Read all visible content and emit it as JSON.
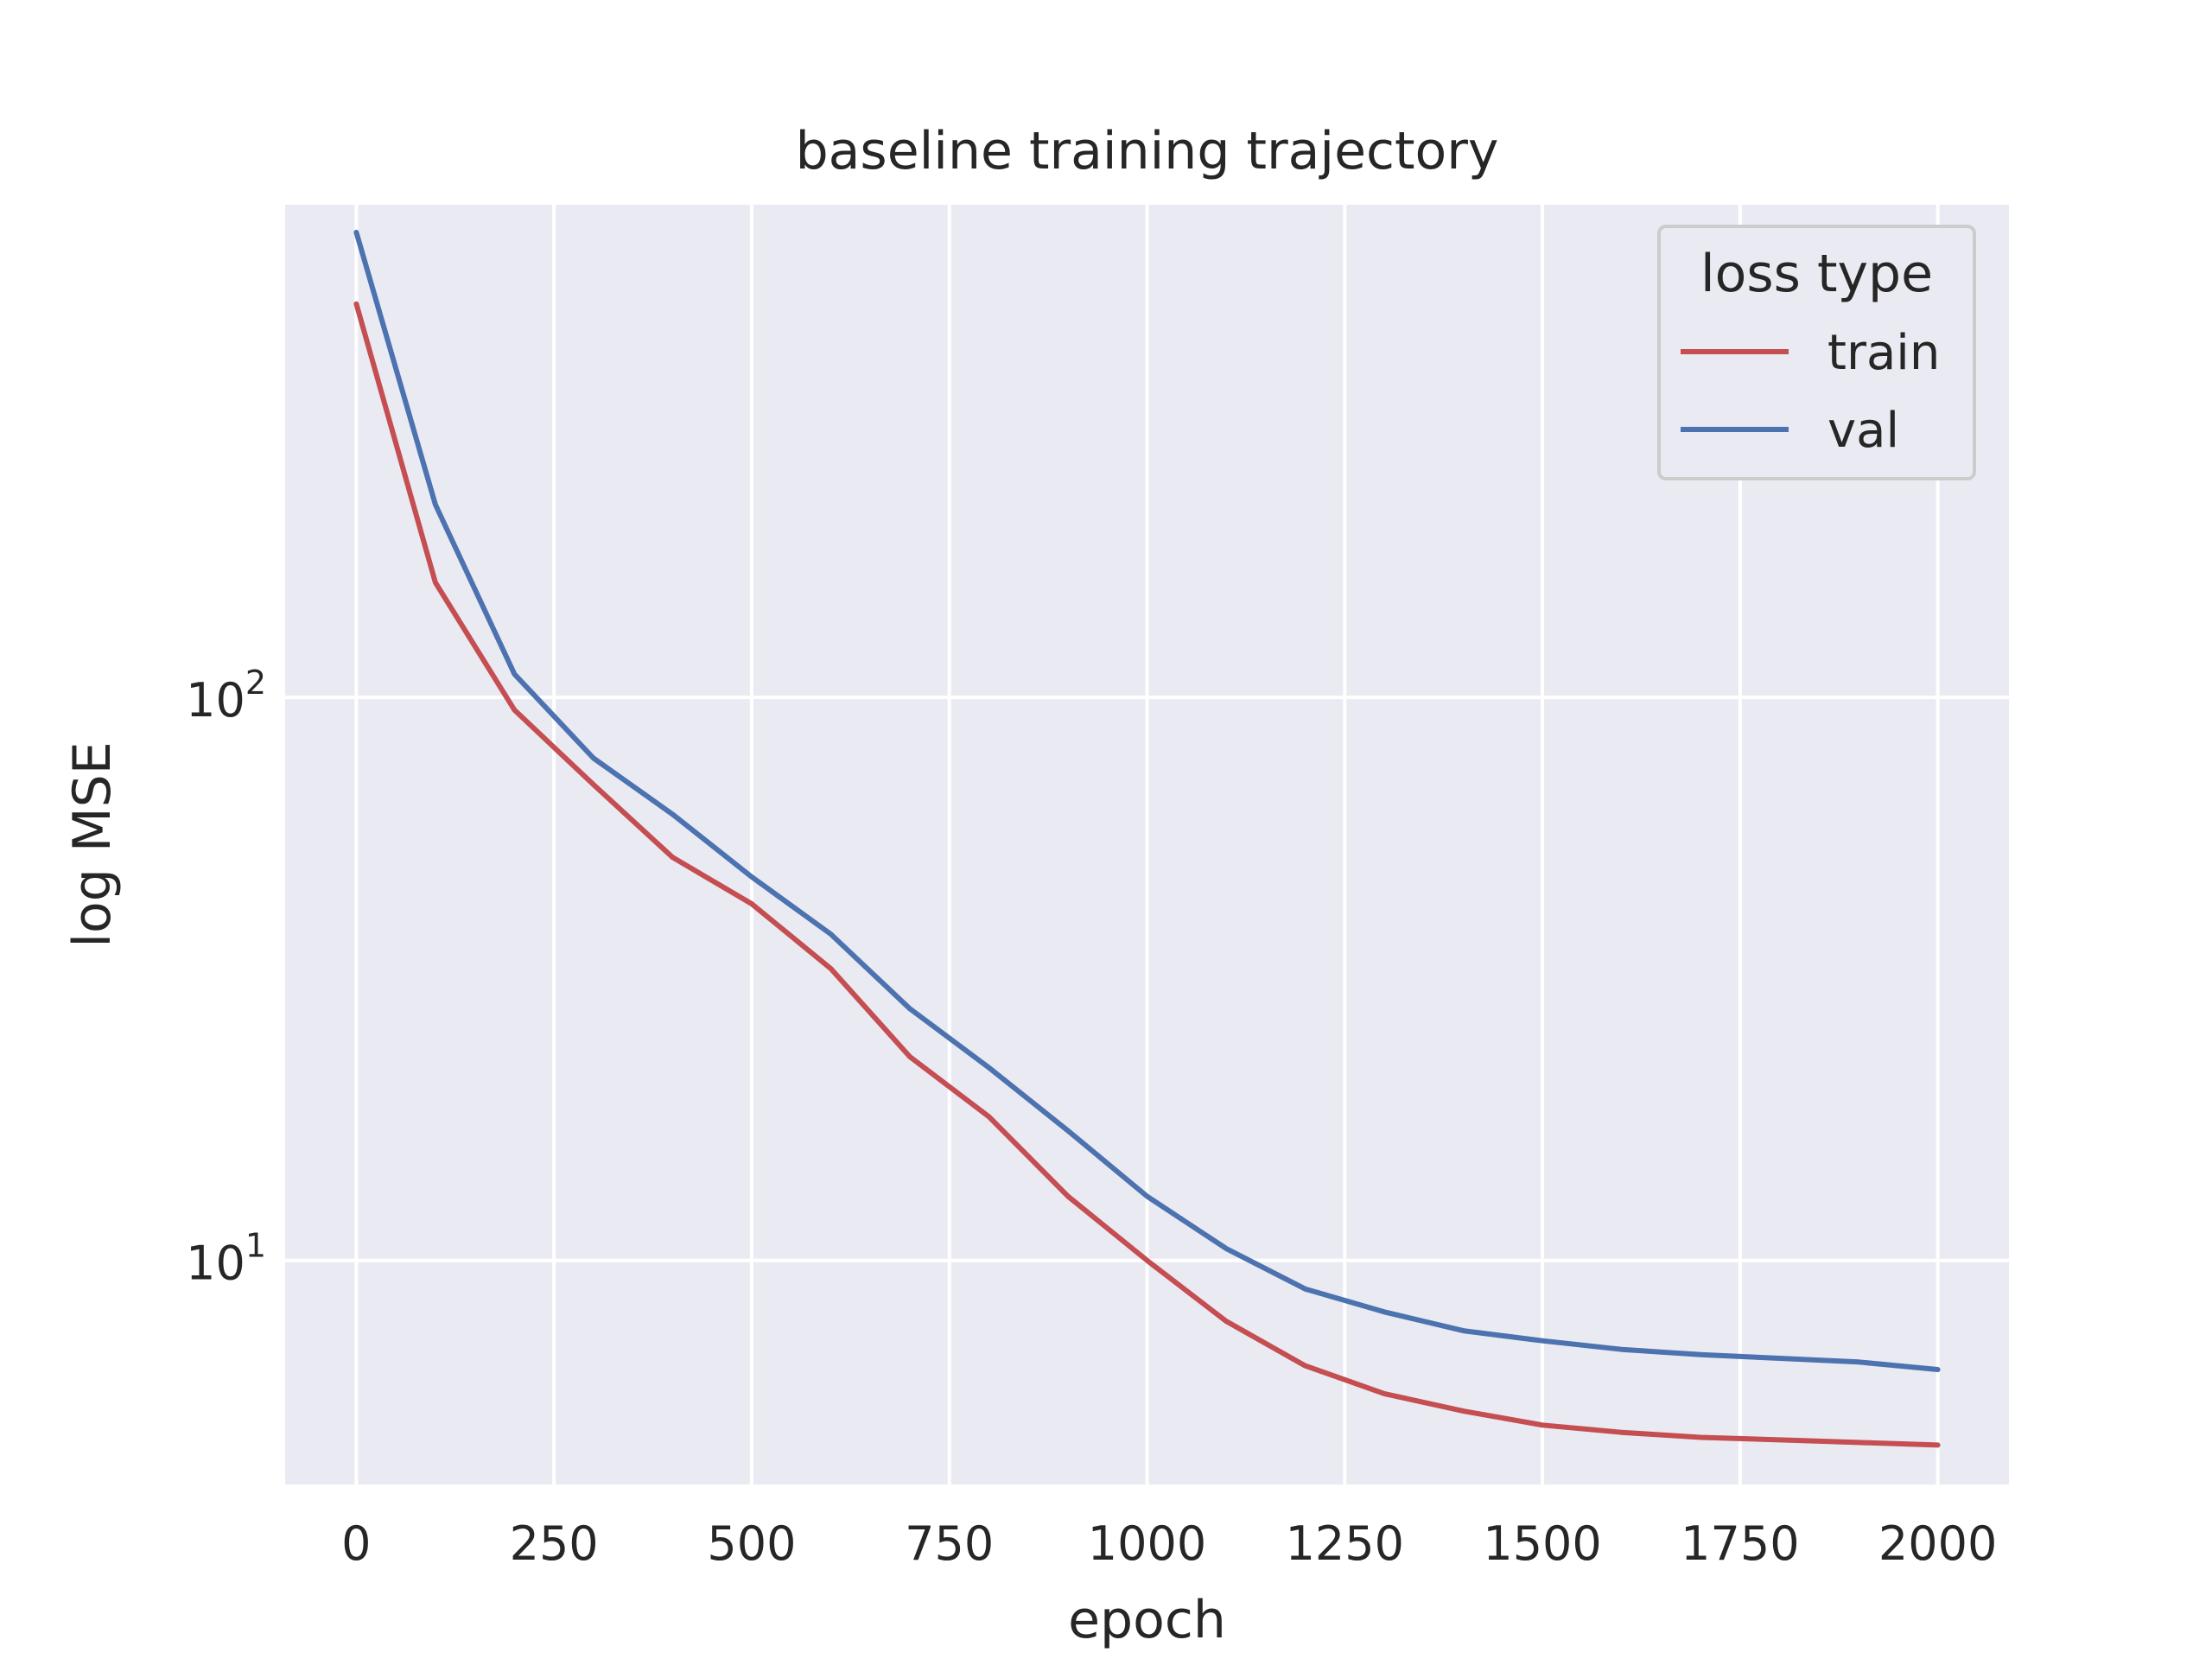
{
  "chart_data": {
    "type": "line",
    "title": "baseline training trajectory",
    "xlabel": "epoch",
    "ylabel": "log MSE",
    "yscale": "log",
    "xlim": [
      -90,
      2090
    ],
    "ylim": [
      4.0,
      750
    ],
    "grid": true,
    "x_ticks": [
      0,
      250,
      500,
      750,
      1000,
      1250,
      1500,
      1750,
      2000
    ],
    "y_ticks": [
      {
        "value": 10,
        "base": "10",
        "exp": "1"
      },
      {
        "value": 100,
        "base": "10",
        "exp": "2"
      }
    ],
    "legend": {
      "title": "loss type",
      "placement": "top-right"
    },
    "x": [
      0,
      100,
      200,
      300,
      400,
      500,
      600,
      700,
      800,
      900,
      1000,
      1100,
      1200,
      1300,
      1400,
      1500,
      1600,
      1700,
      1800,
      1900,
      2000
    ],
    "series": [
      {
        "name": "train",
        "color": "#c44e52",
        "values": [
          500,
          160,
          95,
          70,
          52,
          43,
          33,
          23,
          18,
          13,
          10,
          7.8,
          6.5,
          5.8,
          5.4,
          5.1,
          4.95,
          4.85,
          4.8,
          4.75,
          4.7
        ]
      },
      {
        "name": "val",
        "color": "#4c72b0",
        "values": [
          670,
          220,
          110,
          78,
          62,
          48,
          38,
          28,
          22,
          17,
          13,
          10.5,
          8.9,
          8.1,
          7.5,
          7.2,
          6.95,
          6.8,
          6.7,
          6.6,
          6.4
        ]
      }
    ]
  }
}
